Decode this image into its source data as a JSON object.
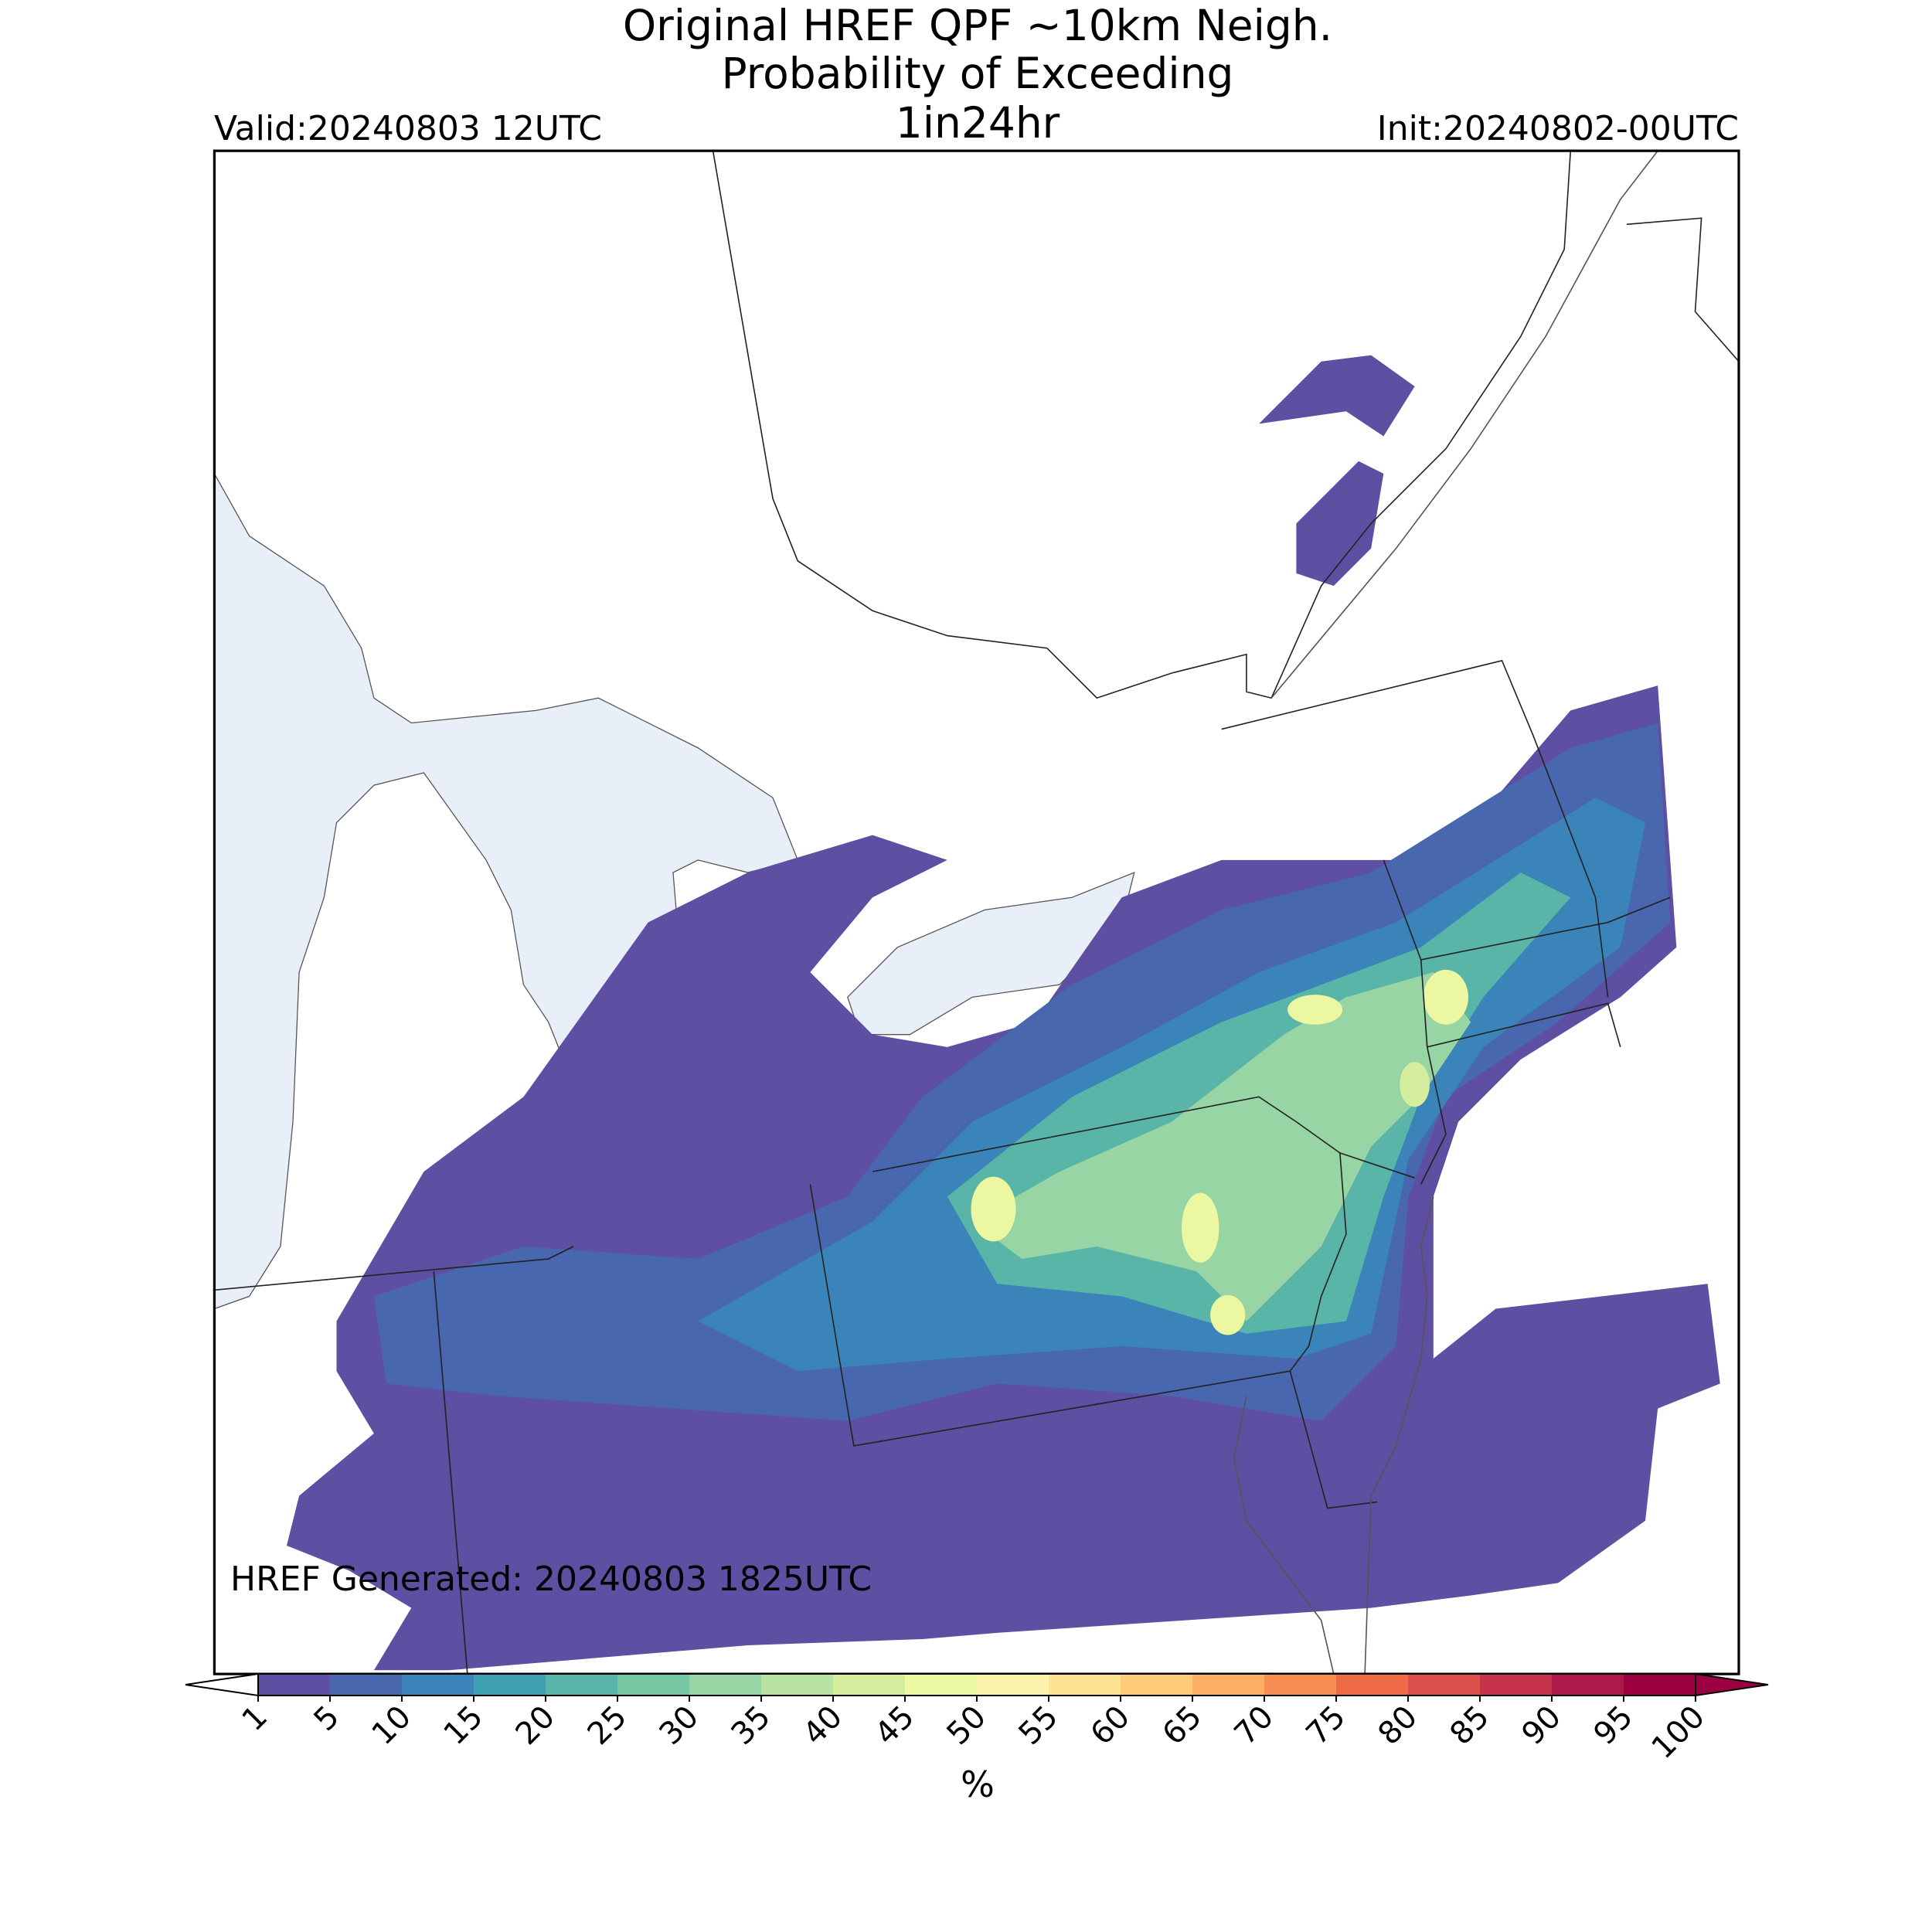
{
  "header": {
    "title_lines": [
      "Original HREF QPF ~10km Neigh.",
      "Probability of Exceeding",
      "1in24hr"
    ],
    "valid": "Valid:20240803 12UTC",
    "init": "Init:20240802-00UTC"
  },
  "map": {
    "generated": "HREF Generated: 20240803 1825UTC"
  },
  "colorbar": {
    "label": "%",
    "ticks": [
      1,
      5,
      10,
      15,
      20,
      25,
      30,
      35,
      40,
      45,
      50,
      55,
      60,
      65,
      70,
      75,
      80,
      85,
      90,
      95,
      100
    ],
    "colors": [
      "#5e4fa2",
      "#4867ae",
      "#3a84b9",
      "#40a0b3",
      "#58b5a8",
      "#76c8a5",
      "#98d5a4",
      "#b7e2a2",
      "#d4ee9d",
      "#ecf7a1",
      "#fdf4ab",
      "#fee492",
      "#fdcb7a",
      "#fdae62",
      "#f88e53",
      "#ef6b46",
      "#dc4e4b",
      "#c6334b",
      "#ad1948",
      "#9e0142"
    ],
    "under_color": "#ffffff",
    "over_color": "#9e0142"
  }
}
